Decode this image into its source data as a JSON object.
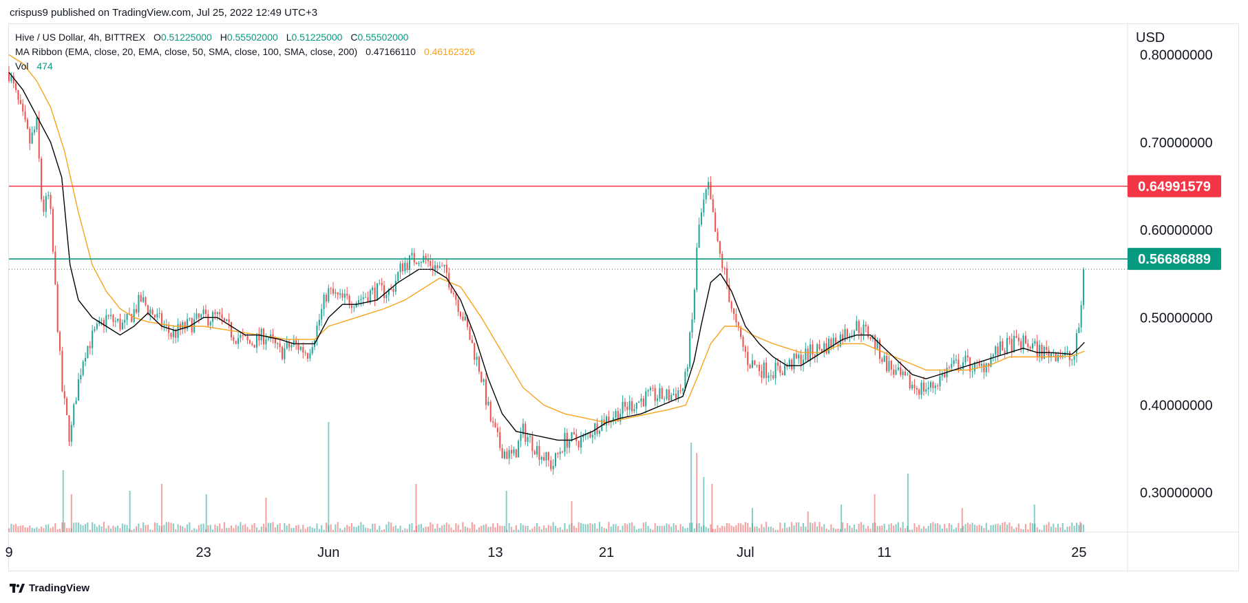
{
  "publisher_line": "crispus9 published on TradingView.com, Jul 25, 2022 12:49 UTC+3",
  "legend": {
    "symbol": "Hive / US Dollar, 4h, BITTREX",
    "o_label": "O",
    "o_value": "0.51225000",
    "h_label": "H",
    "h_value": "0.55502000",
    "l_label": "L",
    "l_value": "0.51225000",
    "c_label": "C",
    "c_value": "0.55502000",
    "ma_label": "MA Ribbon (EMA, close, 20, EMA, close, 50, SMA, close, 100, SMA, close, 200)",
    "ma_value1": "0.47166110",
    "ma_value2": "0.46162326",
    "vol_label": "Vol",
    "vol_value": "474"
  },
  "footer_brand": "TradingView",
  "colors": {
    "up": "#26a69a",
    "down": "#ef5350",
    "ema20": "#000000",
    "ema50": "#f7a21b",
    "resistance": "#f23645",
    "support": "#089981",
    "grid": "#e0e3eb"
  },
  "chart_data": {
    "type": "candlestick",
    "currency_label": "USD",
    "y_ticks": [
      "0.80000000",
      "0.70000000",
      "0.60000000",
      "0.50000000",
      "0.40000000",
      "0.30000000"
    ],
    "y_tick_values": [
      0.8,
      0.7,
      0.6,
      0.5,
      0.4,
      0.3
    ],
    "ylim": [
      0.255,
      0.835
    ],
    "x_ticks": [
      "9",
      "23",
      "Jun",
      "13",
      "21",
      "Jul",
      "11",
      "25"
    ],
    "x_tick_days": [
      0,
      14,
      23,
      35,
      43,
      53,
      63,
      77
    ],
    "day_range": [
      0,
      80.5
    ],
    "horizontal_lines": [
      {
        "label": "0.64991579",
        "value": 0.64991579,
        "color": "#f23645"
      },
      {
        "label": "0.56686889",
        "value": 0.56686889,
        "color": "#089981"
      }
    ],
    "last_price": 0.55502,
    "closes_anchor": [
      [
        0,
        0.78
      ],
      [
        1.5,
        0.7
      ],
      [
        2,
        0.72
      ],
      [
        2.4,
        0.62
      ],
      [
        2.9,
        0.64
      ],
      [
        3.3,
        0.54
      ],
      [
        3.8,
        0.42
      ],
      [
        4.4,
        0.36
      ],
      [
        4.8,
        0.41
      ],
      [
        5.4,
        0.46
      ],
      [
        6.1,
        0.48
      ],
      [
        7,
        0.5
      ],
      [
        8.3,
        0.49
      ],
      [
        9.5,
        0.52
      ],
      [
        10.6,
        0.5
      ],
      [
        11.7,
        0.48
      ],
      [
        12.8,
        0.49
      ],
      [
        14,
        0.5
      ],
      [
        15,
        0.5
      ],
      [
        16.2,
        0.48
      ],
      [
        17.3,
        0.47
      ],
      [
        18.5,
        0.48
      ],
      [
        19.5,
        0.46
      ],
      [
        20.5,
        0.47
      ],
      [
        21.5,
        0.46
      ],
      [
        22.2,
        0.49
      ],
      [
        22.9,
        0.53
      ],
      [
        23.9,
        0.52
      ],
      [
        25,
        0.52
      ],
      [
        26.3,
        0.53
      ],
      [
        27.5,
        0.53
      ],
      [
        28.3,
        0.56
      ],
      [
        29.5,
        0.57
      ],
      [
        30.5,
        0.56
      ],
      [
        31.5,
        0.55
      ],
      [
        32.7,
        0.5
      ],
      [
        33.9,
        0.44
      ],
      [
        34.7,
        0.38
      ],
      [
        35.4,
        0.35
      ],
      [
        36.3,
        0.34
      ],
      [
        37,
        0.37
      ],
      [
        38,
        0.35
      ],
      [
        39.1,
        0.33
      ],
      [
        40,
        0.36
      ],
      [
        41.3,
        0.36
      ],
      [
        42.5,
        0.38
      ],
      [
        43.7,
        0.39
      ],
      [
        44.7,
        0.4
      ],
      [
        46,
        0.41
      ],
      [
        47.5,
        0.41
      ],
      [
        48.6,
        0.42
      ],
      [
        49.2,
        0.5
      ],
      [
        49.6,
        0.6
      ],
      [
        50.3,
        0.65
      ],
      [
        51,
        0.58
      ],
      [
        51.5,
        0.55
      ],
      [
        52.3,
        0.49
      ],
      [
        53.2,
        0.45
      ],
      [
        54.3,
        0.44
      ],
      [
        55.5,
        0.44
      ],
      [
        56.6,
        0.45
      ],
      [
        57.7,
        0.46
      ],
      [
        59.1,
        0.47
      ],
      [
        60,
        0.48
      ],
      [
        61,
        0.49
      ],
      [
        62,
        0.48
      ],
      [
        63,
        0.45
      ],
      [
        64.2,
        0.43
      ],
      [
        65.3,
        0.42
      ],
      [
        66.4,
        0.42
      ],
      [
        67.5,
        0.44
      ],
      [
        68.7,
        0.45
      ],
      [
        69.8,
        0.44
      ],
      [
        71,
        0.46
      ],
      [
        72.2,
        0.47
      ],
      [
        73.3,
        0.47
      ],
      [
        74.4,
        0.46
      ],
      [
        75.6,
        0.46
      ],
      [
        76.6,
        0.45
      ],
      [
        77.1,
        0.5
      ],
      [
        77.4,
        0.555
      ]
    ],
    "ema20": [
      [
        0,
        0.78
      ],
      [
        1,
        0.76
      ],
      [
        2,
        0.73
      ],
      [
        3,
        0.7
      ],
      [
        3.8,
        0.66
      ],
      [
        4.4,
        0.56
      ],
      [
        5,
        0.52
      ],
      [
        6,
        0.5
      ],
      [
        7,
        0.49
      ],
      [
        8,
        0.48
      ],
      [
        9,
        0.49
      ],
      [
        10,
        0.505
      ],
      [
        11,
        0.49
      ],
      [
        12,
        0.485
      ],
      [
        13,
        0.49
      ],
      [
        14,
        0.5
      ],
      [
        15,
        0.5
      ],
      [
        16,
        0.49
      ],
      [
        17,
        0.48
      ],
      [
        18,
        0.48
      ],
      [
        19.5,
        0.475
      ],
      [
        20.5,
        0.47
      ],
      [
        22,
        0.47
      ],
      [
        23,
        0.5
      ],
      [
        24,
        0.515
      ],
      [
        25,
        0.515
      ],
      [
        26.5,
        0.52
      ],
      [
        28,
        0.54
      ],
      [
        29.5,
        0.555
      ],
      [
        30.5,
        0.555
      ],
      [
        31.5,
        0.545
      ],
      [
        32.5,
        0.52
      ],
      [
        33.5,
        0.48
      ],
      [
        34.5,
        0.43
      ],
      [
        35.5,
        0.39
      ],
      [
        36.5,
        0.37
      ],
      [
        38,
        0.365
      ],
      [
        39.5,
        0.36
      ],
      [
        40.5,
        0.36
      ],
      [
        42,
        0.37
      ],
      [
        43,
        0.38
      ],
      [
        44,
        0.385
      ],
      [
        45.5,
        0.39
      ],
      [
        47,
        0.4
      ],
      [
        48.5,
        0.41
      ],
      [
        49.3,
        0.45
      ],
      [
        49.8,
        0.49
      ],
      [
        50.5,
        0.54
      ],
      [
        51.2,
        0.55
      ],
      [
        52,
        0.53
      ],
      [
        53,
        0.49
      ],
      [
        54,
        0.47
      ],
      [
        55,
        0.455
      ],
      [
        56,
        0.445
      ],
      [
        57,
        0.445
      ],
      [
        58,
        0.455
      ],
      [
        59,
        0.465
      ],
      [
        60,
        0.475
      ],
      [
        61,
        0.48
      ],
      [
        62,
        0.48
      ],
      [
        63,
        0.465
      ],
      [
        64,
        0.45
      ],
      [
        65,
        0.435
      ],
      [
        66,
        0.43
      ],
      [
        67,
        0.435
      ],
      [
        68,
        0.44
      ],
      [
        69,
        0.445
      ],
      [
        70,
        0.45
      ],
      [
        71,
        0.455
      ],
      [
        72,
        0.46
      ],
      [
        73,
        0.465
      ],
      [
        74,
        0.46
      ],
      [
        75,
        0.46
      ],
      [
        76.5,
        0.458
      ],
      [
        77,
        0.465
      ],
      [
        77.4,
        0.4717
      ]
    ],
    "ema50": [
      [
        0,
        0.8
      ],
      [
        1,
        0.79
      ],
      [
        2,
        0.77
      ],
      [
        3,
        0.74
      ],
      [
        4,
        0.69
      ],
      [
        5,
        0.62
      ],
      [
        6,
        0.56
      ],
      [
        7,
        0.53
      ],
      [
        8,
        0.51
      ],
      [
        9,
        0.5
      ],
      [
        10,
        0.495
      ],
      [
        12,
        0.49
      ],
      [
        14,
        0.49
      ],
      [
        16,
        0.485
      ],
      [
        18,
        0.48
      ],
      [
        20,
        0.475
      ],
      [
        22,
        0.475
      ],
      [
        23,
        0.49
      ],
      [
        25,
        0.5
      ],
      [
        27,
        0.51
      ],
      [
        28.5,
        0.52
      ],
      [
        30,
        0.535
      ],
      [
        31,
        0.545
      ],
      [
        32.5,
        0.535
      ],
      [
        34,
        0.5
      ],
      [
        35.5,
        0.46
      ],
      [
        37,
        0.42
      ],
      [
        38.5,
        0.4
      ],
      [
        40,
        0.39
      ],
      [
        41.5,
        0.385
      ],
      [
        43,
        0.38
      ],
      [
        44.5,
        0.385
      ],
      [
        46,
        0.39
      ],
      [
        47.5,
        0.395
      ],
      [
        48.7,
        0.4
      ],
      [
        49.5,
        0.43
      ],
      [
        50.5,
        0.47
      ],
      [
        51.5,
        0.49
      ],
      [
        52.5,
        0.49
      ],
      [
        53.5,
        0.48
      ],
      [
        55,
        0.47
      ],
      [
        57,
        0.46
      ],
      [
        58.5,
        0.46
      ],
      [
        60,
        0.47
      ],
      [
        61.5,
        0.47
      ],
      [
        63,
        0.46
      ],
      [
        64.5,
        0.45
      ],
      [
        66,
        0.44
      ],
      [
        67.5,
        0.44
      ],
      [
        69,
        0.44
      ],
      [
        70.5,
        0.445
      ],
      [
        72,
        0.455
      ],
      [
        73.5,
        0.455
      ],
      [
        75,
        0.455
      ],
      [
        76.5,
        0.456
      ],
      [
        77.4,
        0.4616
      ]
    ],
    "volume_spikes": [
      [
        3.9,
        90
      ],
      [
        4.5,
        55
      ],
      [
        8.7,
        60
      ],
      [
        11,
        70
      ],
      [
        14.2,
        55
      ],
      [
        18.5,
        50
      ],
      [
        23,
        160
      ],
      [
        29.3,
        70
      ],
      [
        35.8,
        60
      ],
      [
        40.5,
        45
      ],
      [
        49.1,
        130
      ],
      [
        49.5,
        115
      ],
      [
        50,
        80
      ],
      [
        50.6,
        70
      ],
      [
        53.5,
        35
      ],
      [
        57.5,
        30
      ],
      [
        59.9,
        40
      ],
      [
        62.3,
        55
      ],
      [
        64.7,
        85
      ],
      [
        68.6,
        35
      ],
      [
        73.8,
        40
      ],
      [
        77.1,
        15
      ]
    ]
  }
}
